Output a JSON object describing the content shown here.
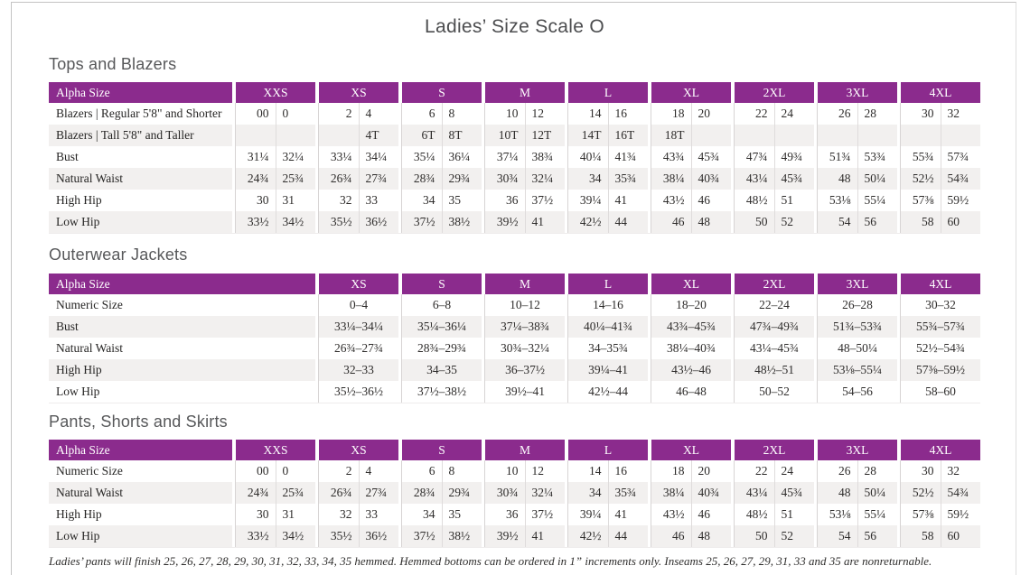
{
  "page": {
    "title": "Ladies’ Size Scale O"
  },
  "colors": {
    "header_purple": "#8b2b8d",
    "header_text": "#ffffff",
    "stripe_row": "#f2f0ef",
    "grid_line": "#d7d4d4",
    "sub_grid_line": "#dfdcdc",
    "heading_text": "#57585a",
    "body_text": "#2e2c2b",
    "frame_border": "#c4c3c3"
  },
  "footnote": "Ladies’ pants will finish 25, 26, 27, 28, 29, 30, 31, 32, 33, 34, 35 hemmed. Hemmed bottoms can be ordered in 1” increments only. Inseams 25, 26, 27, 29, 31, 33 and 35 are nonreturnable.",
  "tables": [
    {
      "section": "Tops and Blazers",
      "label_header": "Alpha Size",
      "size_headers": [
        "XXS",
        "XS",
        "S",
        "M",
        "L",
        "XL",
        "2XL",
        "3XL",
        "4XL"
      ],
      "rows": [
        {
          "label": "Blazers  |  Regular 5'8\" and Shorter",
          "values": [
            [
              "00",
              "0"
            ],
            [
              "2",
              "4"
            ],
            [
              "6",
              "8"
            ],
            [
              "10",
              "12"
            ],
            [
              "14",
              "16"
            ],
            [
              "18",
              "20"
            ],
            [
              "22",
              "24"
            ],
            [
              "26",
              "28"
            ],
            [
              "30",
              "32"
            ]
          ]
        },
        {
          "label": "Blazers  |  Tall 5'8\" and Taller",
          "values": [
            [
              "",
              ""
            ],
            [
              "",
              "4T"
            ],
            [
              "6T",
              "8T"
            ],
            [
              "10T",
              "12T"
            ],
            [
              "14T",
              "16T"
            ],
            [
              "18T",
              ""
            ],
            [
              "",
              ""
            ],
            [
              "",
              ""
            ],
            [
              "",
              ""
            ]
          ]
        },
        {
          "label": "Bust",
          "values": [
            [
              "31¼",
              "32¼"
            ],
            [
              "33¼",
              "34¼"
            ],
            [
              "35¼",
              "36¼"
            ],
            [
              "37¼",
              "38¾"
            ],
            [
              "40¼",
              "41¾"
            ],
            [
              "43¾",
              "45¾"
            ],
            [
              "47¾",
              "49¾"
            ],
            [
              "51¾",
              "53¾"
            ],
            [
              "55¾",
              "57¾"
            ]
          ]
        },
        {
          "label": "Natural Waist",
          "values": [
            [
              "24¾",
              "25¾"
            ],
            [
              "26¾",
              "27¾"
            ],
            [
              "28¾",
              "29¾"
            ],
            [
              "30¾",
              "32¼"
            ],
            [
              "34",
              "35¾"
            ],
            [
              "38¼",
              "40¾"
            ],
            [
              "43¼",
              "45¾"
            ],
            [
              "48",
              "50¼"
            ],
            [
              "52½",
              "54¾"
            ]
          ]
        },
        {
          "label": "High Hip",
          "values": [
            [
              "30",
              "31"
            ],
            [
              "32",
              "33"
            ],
            [
              "34",
              "35"
            ],
            [
              "36",
              "37½"
            ],
            [
              "39¼",
              "41"
            ],
            [
              "43½",
              "46"
            ],
            [
              "48½",
              "51"
            ],
            [
              "53⅛",
              "55¼"
            ],
            [
              "57⅜",
              "59½"
            ]
          ]
        },
        {
          "label": "Low Hip",
          "values": [
            [
              "33½",
              "34½"
            ],
            [
              "35½",
              "36½"
            ],
            [
              "37½",
              "38½"
            ],
            [
              "39½",
              "41"
            ],
            [
              "42½",
              "44"
            ],
            [
              "46",
              "48"
            ],
            [
              "50",
              "52"
            ],
            [
              "54",
              "56"
            ],
            [
              "58",
              "60"
            ]
          ]
        }
      ]
    },
    {
      "section": "Outerwear Jackets",
      "label_header": "Alpha Size",
      "size_headers": [
        "XS",
        "S",
        "M",
        "L",
        "XL",
        "2XL",
        "3XL",
        "4XL"
      ],
      "rows": [
        {
          "label": "Numeric Size",
          "values": [
            "0–4",
            "6–8",
            "10–12",
            "14–16",
            "18–20",
            "22–24",
            "26–28",
            "30–32"
          ]
        },
        {
          "label": "Bust",
          "values": [
            "33¼–34¼",
            "35¼–36¼",
            "37¼–38¾",
            "40¼–41¾",
            "43¾–45¾",
            "47¾–49¾",
            "51¾–53¾",
            "55¾–57¾"
          ]
        },
        {
          "label": "Natural Waist",
          "values": [
            "26¾–27¾",
            "28¾–29¾",
            "30¾–32¼",
            "34–35¾",
            "38¼–40¾",
            "43¼–45¾",
            "48–50¼",
            "52½–54¾"
          ]
        },
        {
          "label": "High Hip",
          "values": [
            "32–33",
            "34–35",
            "36–37½",
            "39¼–41",
            "43½–46",
            "48½–51",
            "53⅛–55¼",
            "57⅜–59½"
          ]
        },
        {
          "label": "Low Hip",
          "values": [
            "35½–36½",
            "37½–38½",
            "39½–41",
            "42½–44",
            "46–48",
            "50–52",
            "54–56",
            "58–60"
          ]
        }
      ]
    },
    {
      "section": "Pants, Shorts and Skirts",
      "label_header": "Alpha Size",
      "size_headers": [
        "XXS",
        "XS",
        "S",
        "M",
        "L",
        "XL",
        "2XL",
        "3XL",
        "4XL"
      ],
      "rows": [
        {
          "label": "Numeric Size",
          "values": [
            [
              "00",
              "0"
            ],
            [
              "2",
              "4"
            ],
            [
              "6",
              "8"
            ],
            [
              "10",
              "12"
            ],
            [
              "14",
              "16"
            ],
            [
              "18",
              "20"
            ],
            [
              "22",
              "24"
            ],
            [
              "26",
              "28"
            ],
            [
              "30",
              "32"
            ]
          ]
        },
        {
          "label": "Natural Waist",
          "values": [
            [
              "24¾",
              "25¾"
            ],
            [
              "26¾",
              "27¾"
            ],
            [
              "28¾",
              "29¾"
            ],
            [
              "30¾",
              "32¼"
            ],
            [
              "34",
              "35¾"
            ],
            [
              "38¼",
              "40¾"
            ],
            [
              "43¼",
              "45¾"
            ],
            [
              "48",
              "50¼"
            ],
            [
              "52½",
              "54¾"
            ]
          ]
        },
        {
          "label": "High Hip",
          "values": [
            [
              "30",
              "31"
            ],
            [
              "32",
              "33"
            ],
            [
              "34",
              "35"
            ],
            [
              "36",
              "37½"
            ],
            [
              "39¼",
              "41"
            ],
            [
              "43½",
              "46"
            ],
            [
              "48½",
              "51"
            ],
            [
              "53⅛",
              "55¼"
            ],
            [
              "57⅜",
              "59½"
            ]
          ]
        },
        {
          "label": "Low Hip",
          "values": [
            [
              "33½",
              "34½"
            ],
            [
              "35½",
              "36½"
            ],
            [
              "37½",
              "38½"
            ],
            [
              "39½",
              "41"
            ],
            [
              "42½",
              "44"
            ],
            [
              "46",
              "48"
            ],
            [
              "50",
              "52"
            ],
            [
              "54",
              "56"
            ],
            [
              "58",
              "60"
            ]
          ]
        }
      ]
    }
  ]
}
